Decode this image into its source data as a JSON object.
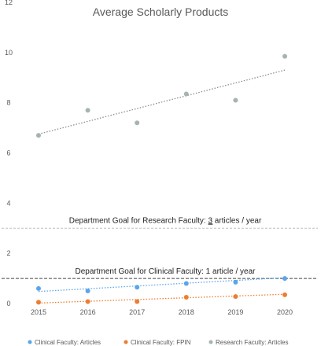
{
  "chart_data": {
    "type": "scatter",
    "title": "Average Scholarly Products",
    "xlabel": "",
    "ylabel": "",
    "x": [
      2015,
      2016,
      2017,
      2018,
      2019,
      2020
    ],
    "xticks": [
      "2015",
      "2016",
      "2017",
      "2018",
      "2019",
      "2020"
    ],
    "ylim": [
      0,
      12
    ],
    "yticks": [
      "0",
      "2",
      "4",
      "6",
      "8",
      "10",
      "12"
    ],
    "grid": false,
    "legend_position": "bottom",
    "series": [
      {
        "name": "Clinical Faculty: Articles",
        "color": "#5BA5EA",
        "values": [
          0.6,
          0.5,
          0.65,
          0.8,
          0.85,
          1.0
        ],
        "trendline": [
          0.48,
          0.59,
          0.7,
          0.81,
          0.92,
          1.03
        ]
      },
      {
        "name": "Clinical Faculty: FPIN",
        "color": "#ED7D31",
        "values": [
          0.05,
          0.08,
          0.08,
          0.25,
          0.28,
          0.35
        ],
        "trendline": [
          0.02,
          0.09,
          0.16,
          0.23,
          0.3,
          0.37
        ]
      },
      {
        "name": "Research Faculty: Articles",
        "color": "#A5B5AC",
        "values": [
          6.7,
          7.7,
          7.2,
          8.35,
          8.1,
          9.85
        ],
        "trendline": [
          6.75,
          7.26,
          7.77,
          8.28,
          8.79,
          9.3
        ]
      }
    ],
    "reference_lines": [
      {
        "value": 3,
        "label_prefix": "Department Goal for Research Faculty: ",
        "label_value": "3",
        "label_suffix": " articles / year",
        "color": "#BFBFBF"
      },
      {
        "value": 1,
        "label": "Department Goal for Clinical Faculty: 1 article / year",
        "color": "#404040"
      }
    ]
  }
}
